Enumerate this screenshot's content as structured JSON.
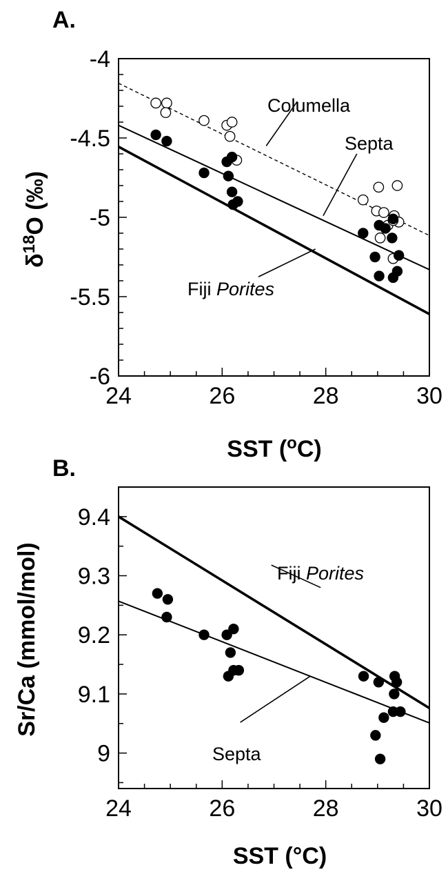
{
  "chart_data": [
    {
      "panel": "A.",
      "type": "scatter",
      "xlabel_parts": [
        "SST (",
        "o",
        "C)"
      ],
      "ylabel_parts": [
        "δ",
        "18",
        "O (‰)"
      ],
      "xlim": [
        24,
        30
      ],
      "ylim": [
        -6,
        -4
      ],
      "x_ticks": [
        24,
        26,
        28,
        30
      ],
      "y_ticks": [
        -6,
        -5.5,
        -5,
        -4.5,
        -4
      ],
      "x_tick_labels": [
        "24",
        "26",
        "28",
        "30"
      ],
      "y_tick_labels": [
        "-6",
        "-5.5",
        "-5",
        "-4.5",
        "-4"
      ],
      "x_minor_step": 0.5,
      "y_minor_step": 0.1,
      "grid": false,
      "series": [
        {
          "name": "Columella",
          "marker": "open-circle",
          "points": [
            [
              24.72,
              -4.28
            ],
            [
              24.93,
              -4.28
            ],
            [
              24.91,
              -4.34
            ],
            [
              25.65,
              -4.39
            ],
            [
              26.09,
              -4.42
            ],
            [
              26.19,
              -4.4
            ],
            [
              26.15,
              -4.49
            ],
            [
              26.28,
              -4.64
            ],
            [
              28.72,
              -4.89
            ],
            [
              28.98,
              -4.96
            ],
            [
              29.12,
              -4.97
            ],
            [
              29.32,
              -4.99
            ],
            [
              29.41,
              -5.03
            ],
            [
              29.02,
              -4.81
            ],
            [
              29.38,
              -4.8
            ],
            [
              29.2,
              -5.05
            ],
            [
              29.05,
              -5.13
            ],
            [
              29.3,
              -5.26
            ],
            [
              29.3,
              -5.02
            ]
          ]
        },
        {
          "name": "Septa",
          "marker": "filled-circle",
          "points": [
            [
              24.72,
              -4.48
            ],
            [
              24.93,
              -4.52
            ],
            [
              25.65,
              -4.72
            ],
            [
              26.09,
              -4.65
            ],
            [
              26.19,
              -4.62
            ],
            [
              26.12,
              -4.74
            ],
            [
              26.19,
              -4.84
            ],
            [
              26.21,
              -4.92
            ],
            [
              26.3,
              -4.9
            ],
            [
              28.72,
              -5.1
            ],
            [
              29.03,
              -5.05
            ],
            [
              29.15,
              -5.07
            ],
            [
              29.3,
              -5.01
            ],
            [
              29.28,
              -5.13
            ],
            [
              28.95,
              -5.25
            ],
            [
              29.41,
              -5.24
            ],
            [
              29.03,
              -5.37
            ],
            [
              29.3,
              -5.38
            ],
            [
              29.38,
              -5.34
            ]
          ]
        }
      ],
      "lines": [
        {
          "name": "Columella",
          "style": "dashed",
          "x": [
            24,
            30
          ],
          "y": [
            -4.155,
            -5.115
          ]
        },
        {
          "name": "Septa",
          "style": "thin",
          "x": [
            24,
            30
          ],
          "y": [
            -4.42,
            -5.33
          ]
        },
        {
          "name": "Fiji Porites",
          "style": "thick",
          "x": [
            24,
            30
          ],
          "y": [
            -4.555,
            -5.61
          ]
        }
      ],
      "annotations": [
        {
          "text": "Columella",
          "leader": [
            [
              26.85,
              -4.55
            ],
            [
              27.45,
              -4.27
            ]
          ]
        },
        {
          "text": "Septa",
          "leader": [
            [
              27.95,
              -4.99
            ],
            [
              28.6,
              -4.6
            ]
          ]
        },
        {
          "text": "Fiji ",
          "italic": "Porites",
          "leader": [
            [
              26.7,
              -5.375
            ],
            [
              27.8,
              -5.2
            ]
          ]
        }
      ]
    },
    {
      "panel": "B.",
      "type": "scatter",
      "xlabel": "SST (°C)",
      "ylabel": "Sr/Ca (mmol/mol)",
      "xlim": [
        24,
        30
      ],
      "ylim": [
        8.94,
        9.45
      ],
      "x_ticks": [
        24,
        26,
        28,
        30
      ],
      "y_ticks": [
        9.0,
        9.1,
        9.2,
        9.3,
        9.4
      ],
      "x_tick_labels": [
        "24",
        "26",
        "28",
        "30"
      ],
      "y_tick_labels": [
        "9",
        "9.1",
        "9.2",
        "9.3",
        "9.4"
      ],
      "x_minor_step": 0.5,
      "y_minor_step": 0.05,
      "grid": false,
      "series": [
        {
          "name": "Septa",
          "marker": "filled-circle",
          "points": [
            [
              24.75,
              9.27
            ],
            [
              24.95,
              9.26
            ],
            [
              24.93,
              9.23
            ],
            [
              25.65,
              9.2
            ],
            [
              26.09,
              9.2
            ],
            [
              26.22,
              9.21
            ],
            [
              26.16,
              9.17
            ],
            [
              26.12,
              9.13
            ],
            [
              26.22,
              9.14
            ],
            [
              26.32,
              9.14
            ],
            [
              28.73,
              9.13
            ],
            [
              29.02,
              9.12
            ],
            [
              29.33,
              9.13
            ],
            [
              29.37,
              9.12
            ],
            [
              29.32,
              9.1
            ],
            [
              29.3,
              9.07
            ],
            [
              29.44,
              9.07
            ],
            [
              29.12,
              9.06
            ],
            [
              28.96,
              9.03
            ],
            [
              29.05,
              8.99
            ]
          ]
        }
      ],
      "lines": [
        {
          "name": "Fiji Porites",
          "style": "thick",
          "x": [
            24,
            30
          ],
          "y": [
            9.4,
            9.076
          ]
        },
        {
          "name": "Septa",
          "style": "thin",
          "x": [
            24,
            30
          ],
          "y": [
            9.257,
            9.051
          ]
        }
      ],
      "annotations": [
        {
          "text": "Fiji ",
          "italic": "Porites",
          "leader": [
            [
              27.9,
              9.28
            ],
            [
              26.95,
              9.318
            ]
          ]
        },
        {
          "text": "Septa",
          "leader": [
            [
              27.7,
              9.13
            ],
            [
              26.35,
              9.052
            ]
          ]
        }
      ]
    }
  ]
}
